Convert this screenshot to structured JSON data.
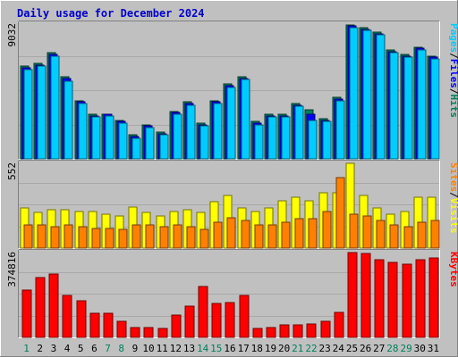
{
  "chart_data": {
    "type": "bar",
    "title": "Daily usage for December 2024",
    "colors": {
      "background": "#c0c0c0",
      "frame_light": "#ffffff",
      "frame_dark": "#808080",
      "title": "#0000cc",
      "hits": "#00805c",
      "files": "#0000ff",
      "pages": "#00ccff",
      "visits": "#ffff00",
      "sites": "#ff8000",
      "kbytes": "#ff0000",
      "weekday_label": "#000000",
      "weekend_label": "#00805c"
    },
    "categories": [
      "1",
      "2",
      "3",
      "4",
      "5",
      "6",
      "7",
      "8",
      "9",
      "10",
      "11",
      "12",
      "13",
      "14",
      "15",
      "16",
      "17",
      "18",
      "19",
      "20",
      "21",
      "22",
      "23",
      "24",
      "25",
      "26",
      "27",
      "28",
      "29",
      "30",
      "31"
    ],
    "weekend_days": [
      "1",
      "7",
      "8",
      "14",
      "15",
      "21",
      "22",
      "28",
      "29"
    ],
    "panels": [
      {
        "id": "hits-panel",
        "ymax_label": "9032",
        "ylim": [
          0,
          9032
        ],
        "side_label": [
          {
            "text": "Pages",
            "color": "#00ccff"
          },
          {
            "text": "/",
            "color": "#000000"
          },
          {
            "text": "Files",
            "color": "#0000ff"
          },
          {
            "text": "/",
            "color": "#000000"
          },
          {
            "text": "Hits",
            "color": "#00805c"
          }
        ],
        "series": [
          {
            "name": "Hits",
            "color": "#00805c",
            "values": [
              6200,
              6400,
              7100,
              5500,
              3900,
              3000,
              3000,
              2600,
              1600,
              2300,
              1800,
              3200,
              3800,
              2400,
              3900,
              5000,
              5500,
              2500,
              3000,
              3000,
              3700,
              3300,
              2700,
              4100,
              9000,
              8800,
              8500,
              7300,
              7000,
              7500,
              6900
            ]
          },
          {
            "name": "Files",
            "color": "#0000ff",
            "values": [
              6100,
              6300,
              7000,
              5400,
              3800,
              2900,
              3000,
              2500,
              1500,
              2200,
              1700,
              3100,
              3700,
              2300,
              3800,
              4900,
              5400,
              2400,
              2900,
              2900,
              3600,
              3000,
              2600,
              4000,
              8900,
              8700,
              8400,
              7200,
              6900,
              7400,
              6800
            ]
          },
          {
            "name": "Pages",
            "color": "#00ccff",
            "values": [
              6000,
              6200,
              6900,
              5200,
              3700,
              2800,
              2900,
              2400,
              1400,
              2100,
              1600,
              3000,
              3600,
              2200,
              3700,
              4800,
              5300,
              2300,
              2800,
              2800,
              3500,
              2600,
              2500,
              3900,
              8800,
              8600,
              8300,
              7100,
              6800,
              7300,
              6700
            ]
          }
        ]
      },
      {
        "id": "visits-panel",
        "ymax_label": "552",
        "ylim": [
          0,
          552
        ],
        "side_label": [
          {
            "text": "Sites",
            "color": "#ff8000"
          },
          {
            "text": "/",
            "color": "#000000"
          },
          {
            "text": "Visits",
            "color": "#ffff00"
          }
        ],
        "series": [
          {
            "name": "Visits",
            "color": "#ffff00",
            "values": [
              260,
              230,
              250,
              250,
              240,
              240,
              220,
              210,
              270,
              230,
              210,
              240,
              250,
              230,
              300,
              340,
              260,
              240,
              260,
              310,
              330,
              310,
              360,
              360,
              552,
              340,
              260,
              220,
              240,
              330,
              330
            ]
          },
          {
            "name": "Sites",
            "color": "#ff8000",
            "values": [
              150,
              150,
              140,
              150,
              140,
              130,
              130,
              120,
              150,
              150,
              140,
              150,
              140,
              120,
              170,
              200,
              180,
              150,
              150,
              170,
              190,
              190,
              240,
              460,
              220,
              210,
              180,
              150,
              140,
              170,
              180
            ]
          }
        ]
      },
      {
        "id": "kbytes-panel",
        "ymax_label": "374816",
        "ylim": [
          0,
          374816
        ],
        "side_label": [
          {
            "text": "KBytes",
            "color": "#ff0000"
          }
        ],
        "series": [
          {
            "name": "KBytes",
            "color": "#ff0000",
            "values": [
              210000,
              265000,
              280000,
              185000,
              160000,
              105000,
              105000,
              70000,
              45000,
              45000,
              40000,
              100000,
              140000,
              225000,
              150000,
              155000,
              185000,
              40000,
              45000,
              55000,
              55000,
              60000,
              70000,
              110000,
              374816,
              370000,
              345000,
              330000,
              325000,
              345000,
              350000
            ]
          }
        ]
      }
    ]
  }
}
